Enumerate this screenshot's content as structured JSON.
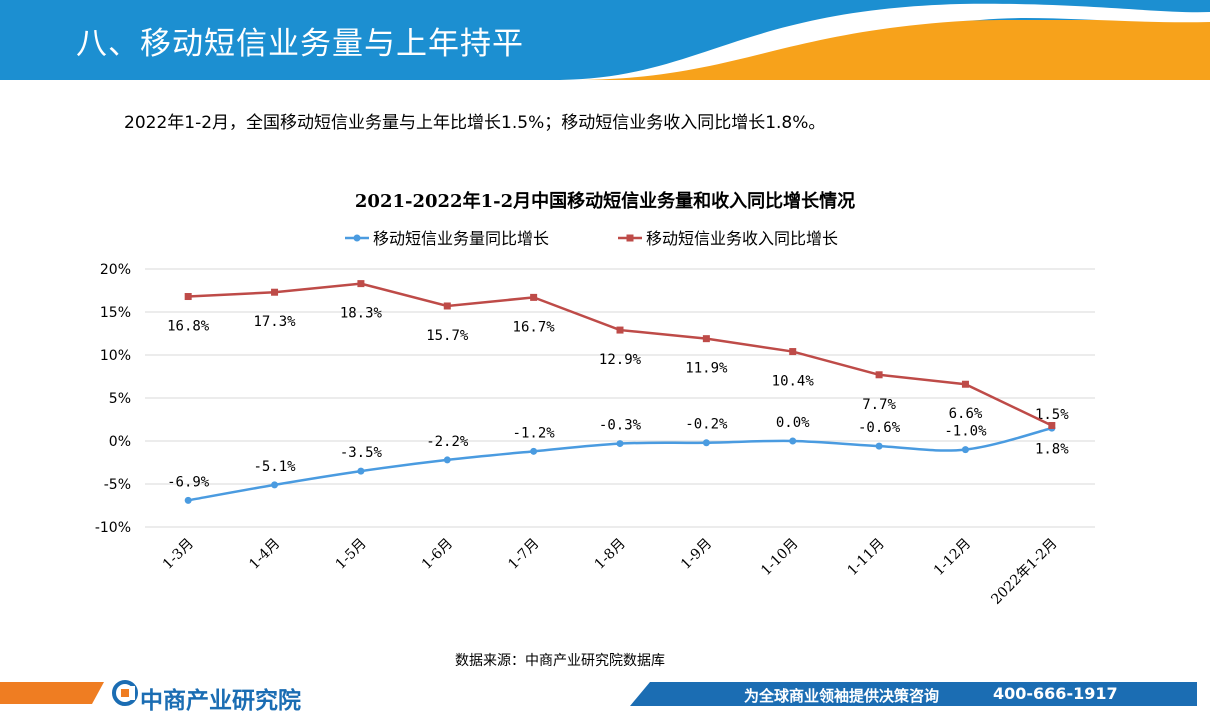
{
  "header": {
    "title": "八、移动短信业务量与上年持平"
  },
  "summary": "2022年1-2月，全国移动短信业务量与上年比增长1.5%；移动短信业务收入同比增长1.8%。",
  "colors": {
    "header_blue": "#1c8fd1",
    "header_orange": "#f7a21b",
    "series_volume": "#4a9be0",
    "series_revenue": "#be4b48",
    "footer_orange": "#ef7d22",
    "footer_blue": "#1b6db3"
  },
  "chart_data": {
    "type": "line",
    "title": "2021-2022年1-2月中国移动短信业务量和收入同比增长情况",
    "categories": [
      "1-3月",
      "1-4月",
      "1-5月",
      "1-6月",
      "1-7月",
      "1-8月",
      "1-9月",
      "1-10月",
      "1-11月",
      "1-12月",
      "2022年1-2月"
    ],
    "ylim": [
      -10,
      20
    ],
    "yticks": [
      20,
      15,
      10,
      5,
      0,
      -5,
      -10
    ],
    "ytick_labels": [
      "20%",
      "15%",
      "10%",
      "5%",
      "0%",
      "-5%",
      "-10%"
    ],
    "legend_position": "top",
    "series": [
      {
        "name": "移动短信业务量同比增长",
        "color": "#4a9be0",
        "marker": "circle",
        "smooth": true,
        "values": [
          -6.9,
          -5.1,
          -3.5,
          -2.2,
          -1.2,
          -0.3,
          -0.2,
          0.0,
          -0.6,
          -1.0,
          1.5
        ],
        "labels": [
          "-6.9%",
          "-5.1%",
          "-3.5%",
          "-2.2%",
          "-1.2%",
          "-0.3%",
          "-0.2%",
          "0.0%",
          "-0.6%",
          "-1.0%",
          "1.5%"
        ]
      },
      {
        "name": "移动短信业务收入同比增长",
        "color": "#be4b48",
        "marker": "square",
        "smooth": false,
        "values": [
          16.8,
          17.3,
          18.3,
          15.7,
          16.7,
          12.9,
          11.9,
          10.4,
          7.7,
          6.6,
          1.8
        ],
        "labels": [
          "16.8%",
          "17.3%",
          "18.3%",
          "15.7%",
          "16.7%",
          "12.9%",
          "11.9%",
          "10.4%",
          "7.7%",
          "6.6%",
          "1.8%"
        ]
      }
    ]
  },
  "source": "数据来源：中商产业研究院数据库",
  "footer": {
    "logo_text": "中商产业研究院",
    "slogan": "为全球商业领袖提供决策咨询",
    "phone": "400-666-1917"
  }
}
